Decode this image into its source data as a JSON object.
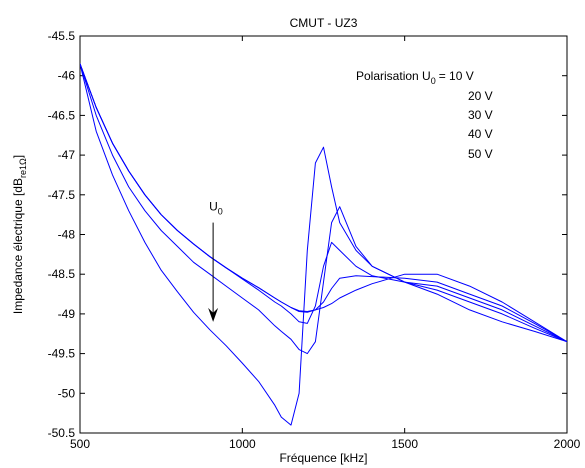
{
  "chart_data": {
    "type": "line",
    "title": "CMUT - UZ3",
    "xlabel": "Fréquence [kHz]",
    "ylabel": {
      "main": "Impedance électrique [dB",
      "sub": "re1Ω",
      "close": "]"
    },
    "xlim": [
      500,
      2000
    ],
    "ylim": [
      -50.5,
      -45.5
    ],
    "xticks": [
      500,
      1000,
      1500,
      2000
    ],
    "yticks": [
      -45.5,
      -46,
      -46.5,
      -47,
      -47.5,
      -48,
      -48.5,
      -49,
      -49.5,
      -50,
      -50.5
    ],
    "grid": false,
    "line_color": "#0000ff",
    "legend": {
      "prefix": "Polarisation U",
      "sub": "0",
      "entries": [
        "= 10 V",
        "20 V",
        "30 V",
        "40 V",
        "50 V"
      ]
    },
    "annotation": {
      "label": "U",
      "sub": "0",
      "arrow_x": 910,
      "arrow_from": -47.85,
      "arrow_to": -49.1
    },
    "x": [
      500,
      550,
      600,
      650,
      700,
      750,
      800,
      850,
      900,
      950,
      1000,
      1050,
      1100,
      1120,
      1150,
      1175,
      1200,
      1225,
      1250,
      1275,
      1300,
      1350,
      1400,
      1500,
      1600,
      1700,
      1800,
      1900,
      2000
    ],
    "series": [
      {
        "values": [
          -45.85,
          -46.4,
          -46.85,
          -47.2,
          -47.5,
          -47.75,
          -47.95,
          -48.12,
          -48.28,
          -48.42,
          -48.55,
          -48.67,
          -48.8,
          -48.85,
          -48.92,
          -48.96,
          -48.97,
          -48.95,
          -48.92,
          -48.87,
          -48.8,
          -48.7,
          -48.62,
          -48.5,
          -48.5,
          -48.65,
          -48.85,
          -49.1,
          -49.35
        ]
      },
      {
        "values": [
          -45.85,
          -46.4,
          -46.85,
          -47.2,
          -47.5,
          -47.75,
          -47.95,
          -48.12,
          -48.28,
          -48.42,
          -48.55,
          -48.67,
          -48.8,
          -48.85,
          -48.92,
          -48.97,
          -48.98,
          -48.95,
          -48.85,
          -48.68,
          -48.55,
          -48.52,
          -48.53,
          -48.55,
          -48.6,
          -48.75,
          -48.9,
          -49.12,
          -49.35
        ]
      },
      {
        "values": [
          -45.85,
          -46.4,
          -46.85,
          -47.2,
          -47.5,
          -47.75,
          -47.95,
          -48.12,
          -48.28,
          -48.42,
          -48.56,
          -48.7,
          -48.85,
          -48.9,
          -49.0,
          -49.1,
          -49.12,
          -48.9,
          -48.4,
          -48.1,
          -48.2,
          -48.4,
          -48.52,
          -48.6,
          -48.65,
          -48.8,
          -48.95,
          -49.15,
          -49.35
        ]
      },
      {
        "values": [
          -45.85,
          -46.5,
          -47.0,
          -47.4,
          -47.7,
          -47.95,
          -48.15,
          -48.35,
          -48.5,
          -48.65,
          -48.8,
          -48.95,
          -49.15,
          -49.22,
          -49.32,
          -49.45,
          -49.5,
          -49.35,
          -48.6,
          -47.85,
          -47.65,
          -48.15,
          -48.4,
          -48.6,
          -48.7,
          -48.85,
          -49.0,
          -49.18,
          -49.35
        ]
      },
      {
        "values": [
          -45.85,
          -46.7,
          -47.25,
          -47.7,
          -48.1,
          -48.45,
          -48.72,
          -48.98,
          -49.2,
          -49.4,
          -49.62,
          -49.85,
          -50.15,
          -50.3,
          -50.4,
          -50.0,
          -48.2,
          -47.1,
          -46.9,
          -47.4,
          -47.85,
          -48.2,
          -48.4,
          -48.6,
          -48.75,
          -48.95,
          -49.1,
          -49.22,
          -49.35
        ]
      }
    ]
  }
}
